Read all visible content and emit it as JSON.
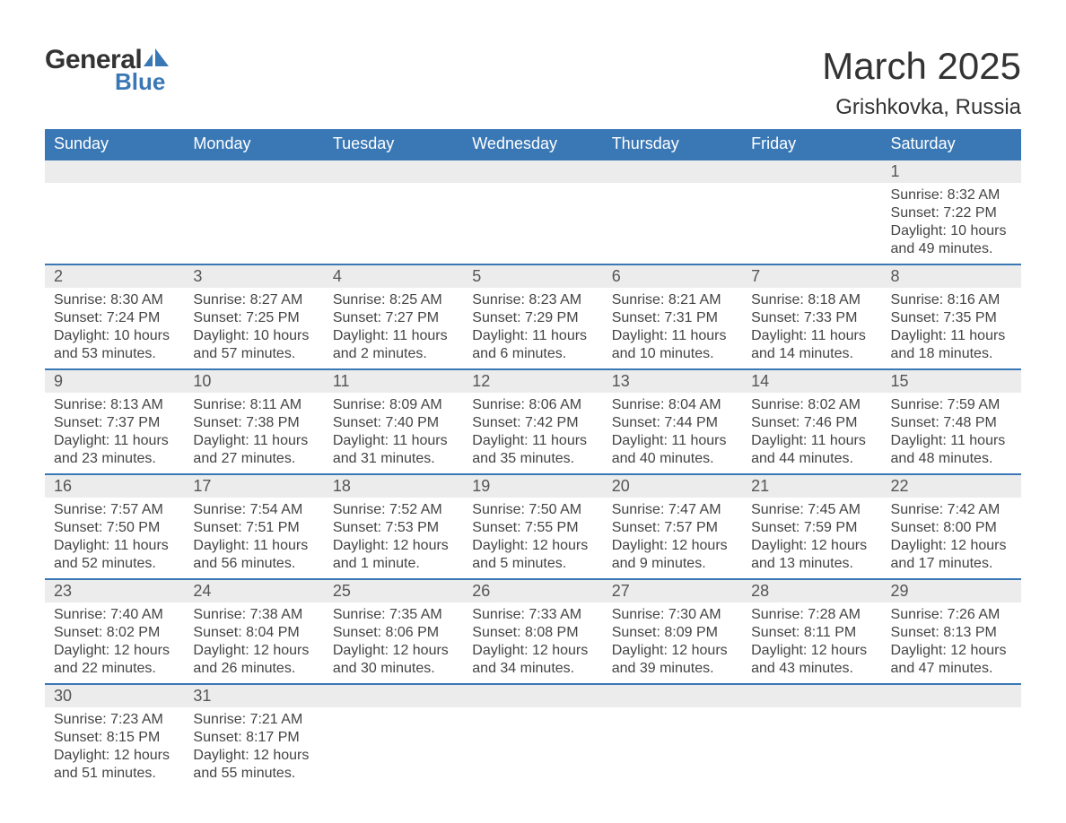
{
  "logo": {
    "text_general": "General",
    "text_blue": "Blue",
    "icon_color": "#3a78b5"
  },
  "title": "March 2025",
  "location": "Grishkovka, Russia",
  "header_bg": "#3a78b5",
  "header_fg": "#ffffff",
  "daynum_bg": "#ececec",
  "text_color": "#333333",
  "weekdays": [
    "Sunday",
    "Monday",
    "Tuesday",
    "Wednesday",
    "Thursday",
    "Friday",
    "Saturday"
  ],
  "weeks": [
    [
      null,
      null,
      null,
      null,
      null,
      null,
      {
        "n": "1",
        "sr": "8:32 AM",
        "ss": "7:22 PM",
        "dl": "10 hours and 49 minutes."
      }
    ],
    [
      {
        "n": "2",
        "sr": "8:30 AM",
        "ss": "7:24 PM",
        "dl": "10 hours and 53 minutes."
      },
      {
        "n": "3",
        "sr": "8:27 AM",
        "ss": "7:25 PM",
        "dl": "10 hours and 57 minutes."
      },
      {
        "n": "4",
        "sr": "8:25 AM",
        "ss": "7:27 PM",
        "dl": "11 hours and 2 minutes."
      },
      {
        "n": "5",
        "sr": "8:23 AM",
        "ss": "7:29 PM",
        "dl": "11 hours and 6 minutes."
      },
      {
        "n": "6",
        "sr": "8:21 AM",
        "ss": "7:31 PM",
        "dl": "11 hours and 10 minutes."
      },
      {
        "n": "7",
        "sr": "8:18 AM",
        "ss": "7:33 PM",
        "dl": "11 hours and 14 minutes."
      },
      {
        "n": "8",
        "sr": "8:16 AM",
        "ss": "7:35 PM",
        "dl": "11 hours and 18 minutes."
      }
    ],
    [
      {
        "n": "9",
        "sr": "8:13 AM",
        "ss": "7:37 PM",
        "dl": "11 hours and 23 minutes."
      },
      {
        "n": "10",
        "sr": "8:11 AM",
        "ss": "7:38 PM",
        "dl": "11 hours and 27 minutes."
      },
      {
        "n": "11",
        "sr": "8:09 AM",
        "ss": "7:40 PM",
        "dl": "11 hours and 31 minutes."
      },
      {
        "n": "12",
        "sr": "8:06 AM",
        "ss": "7:42 PM",
        "dl": "11 hours and 35 minutes."
      },
      {
        "n": "13",
        "sr": "8:04 AM",
        "ss": "7:44 PM",
        "dl": "11 hours and 40 minutes."
      },
      {
        "n": "14",
        "sr": "8:02 AM",
        "ss": "7:46 PM",
        "dl": "11 hours and 44 minutes."
      },
      {
        "n": "15",
        "sr": "7:59 AM",
        "ss": "7:48 PM",
        "dl": "11 hours and 48 minutes."
      }
    ],
    [
      {
        "n": "16",
        "sr": "7:57 AM",
        "ss": "7:50 PM",
        "dl": "11 hours and 52 minutes."
      },
      {
        "n": "17",
        "sr": "7:54 AM",
        "ss": "7:51 PM",
        "dl": "11 hours and 56 minutes."
      },
      {
        "n": "18",
        "sr": "7:52 AM",
        "ss": "7:53 PM",
        "dl": "12 hours and 1 minute."
      },
      {
        "n": "19",
        "sr": "7:50 AM",
        "ss": "7:55 PM",
        "dl": "12 hours and 5 minutes."
      },
      {
        "n": "20",
        "sr": "7:47 AM",
        "ss": "7:57 PM",
        "dl": "12 hours and 9 minutes."
      },
      {
        "n": "21",
        "sr": "7:45 AM",
        "ss": "7:59 PM",
        "dl": "12 hours and 13 minutes."
      },
      {
        "n": "22",
        "sr": "7:42 AM",
        "ss": "8:00 PM",
        "dl": "12 hours and 17 minutes."
      }
    ],
    [
      {
        "n": "23",
        "sr": "7:40 AM",
        "ss": "8:02 PM",
        "dl": "12 hours and 22 minutes."
      },
      {
        "n": "24",
        "sr": "7:38 AM",
        "ss": "8:04 PM",
        "dl": "12 hours and 26 minutes."
      },
      {
        "n": "25",
        "sr": "7:35 AM",
        "ss": "8:06 PM",
        "dl": "12 hours and 30 minutes."
      },
      {
        "n": "26",
        "sr": "7:33 AM",
        "ss": "8:08 PM",
        "dl": "12 hours and 34 minutes."
      },
      {
        "n": "27",
        "sr": "7:30 AM",
        "ss": "8:09 PM",
        "dl": "12 hours and 39 minutes."
      },
      {
        "n": "28",
        "sr": "7:28 AM",
        "ss": "8:11 PM",
        "dl": "12 hours and 43 minutes."
      },
      {
        "n": "29",
        "sr": "7:26 AM",
        "ss": "8:13 PM",
        "dl": "12 hours and 47 minutes."
      }
    ],
    [
      {
        "n": "30",
        "sr": "7:23 AM",
        "ss": "8:15 PM",
        "dl": "12 hours and 51 minutes."
      },
      {
        "n": "31",
        "sr": "7:21 AM",
        "ss": "8:17 PM",
        "dl": "12 hours and 55 minutes."
      },
      null,
      null,
      null,
      null,
      null
    ]
  ],
  "labels": {
    "sunrise": "Sunrise:",
    "sunset": "Sunset:",
    "daylight": "Daylight:"
  }
}
